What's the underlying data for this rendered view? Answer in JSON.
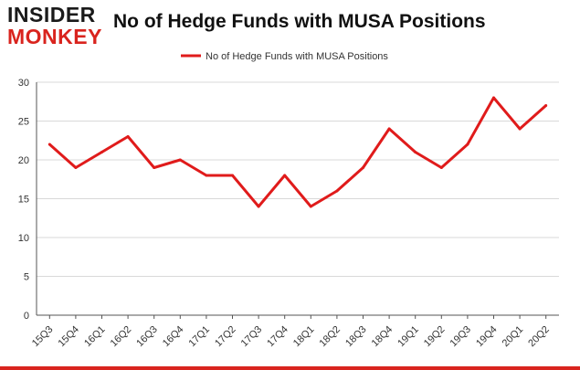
{
  "logo": {
    "line1": "INSIDER",
    "line2": "MONKEY"
  },
  "chart_data": {
    "type": "line",
    "title": "No of Hedge Funds with MUSA Positions",
    "xlabel": "",
    "ylabel": "",
    "categories": [
      "15Q3",
      "15Q4",
      "16Q1",
      "16Q2",
      "16Q3",
      "16Q4",
      "17Q1",
      "17Q2",
      "17Q3",
      "17Q4",
      "18Q1",
      "18Q2",
      "18Q3",
      "18Q4",
      "19Q1",
      "19Q2",
      "19Q3",
      "19Q4",
      "20Q1",
      "20Q2"
    ],
    "series": [
      {
        "name": "No of Hedge Funds with MUSA Positions",
        "values": [
          22,
          19,
          21,
          23,
          19,
          20,
          18,
          18,
          14,
          18,
          14,
          16,
          19,
          24,
          21,
          19,
          22,
          28,
          24,
          27
        ]
      }
    ],
    "ylim": [
      0,
      30
    ],
    "yticks": [
      0,
      5,
      10,
      15,
      20,
      25,
      30
    ],
    "grid": true,
    "legend_position": "top-center",
    "colors": {
      "line": "#e01b1b",
      "grid": "#d9d9d9",
      "axis": "#555555",
      "accent": "#d9241e"
    }
  }
}
